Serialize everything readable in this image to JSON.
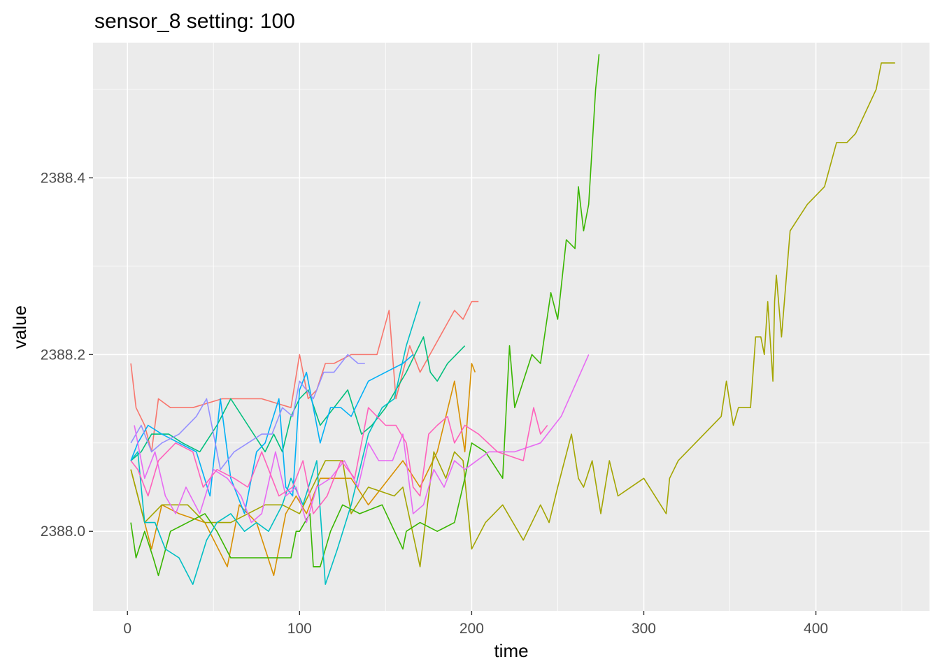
{
  "chart_data": {
    "type": "line",
    "title": "sensor_8 setting: 100",
    "xlabel": "time",
    "ylabel": "value",
    "xlim": [
      -20,
      466
    ],
    "ylim": [
      2387.91,
      2388.553
    ],
    "x_major_ticks": [
      0,
      100,
      200,
      300,
      400
    ],
    "x_tick_labels": [
      "0",
      "100",
      "200",
      "300",
      "400"
    ],
    "y_major_ticks": [
      2388.0,
      2388.2,
      2388.4
    ],
    "y_tick_labels": [
      "2388.0",
      "2388.2",
      "2388.4"
    ],
    "grid": true,
    "legend": "none",
    "series": [
      {
        "color": "#F8766D",
        "x": [
          2,
          5,
          10,
          14,
          18,
          25,
          38,
          55,
          78,
          95,
          100,
          105,
          110,
          115,
          120,
          130,
          145,
          152,
          156,
          164,
          170,
          190,
          195,
          200,
          204
        ],
        "y": [
          2388.19,
          2388.14,
          2388.12,
          2388.09,
          2388.15,
          2388.14,
          2388.14,
          2388.15,
          2388.15,
          2388.14,
          2388.2,
          2388.15,
          2388.16,
          2388.19,
          2388.19,
          2388.2,
          2388.2,
          2388.25,
          2388.15,
          2388.21,
          2388.18,
          2388.25,
          2388.24,
          2388.26,
          2388.26
        ]
      },
      {
        "color": "#D89000",
        "x": [
          2,
          6,
          10,
          14,
          20,
          30,
          45,
          58,
          65,
          75,
          85,
          92,
          98,
          104,
          112,
          120,
          130,
          140,
          160,
          170,
          180,
          190,
          196,
          200,
          202
        ],
        "y": [
          2388.07,
          2388.04,
          2388.01,
          2387.98,
          2388.03,
          2388.02,
          2388.01,
          2387.96,
          2388.03,
          2388.01,
          2387.95,
          2388.02,
          2388.04,
          2388.02,
          2388.06,
          2388.06,
          2388.06,
          2388.03,
          2388.08,
          2388.05,
          2388.09,
          2388.17,
          2388.09,
          2388.19,
          2388.18
        ]
      },
      {
        "color": "#A3A500",
        "x": [
          2,
          10,
          20,
          35,
          45,
          60,
          80,
          90,
          100,
          115,
          125,
          130,
          140,
          155,
          160,
          170,
          178,
          185,
          190,
          195,
          200,
          208,
          218,
          230,
          240,
          245,
          250,
          258,
          262,
          265,
          270,
          275,
          280,
          285,
          300,
          313,
          315,
          320,
          345,
          348,
          352,
          355,
          362,
          365,
          368,
          370,
          372,
          375,
          376,
          377,
          380,
          385,
          395,
          405,
          412,
          418,
          423,
          435,
          438,
          441,
          445,
          446
        ],
        "y": [
          2388.07,
          2388.01,
          2388.03,
          2388.03,
          2388.01,
          2388.01,
          2388.03,
          2388.03,
          2388.02,
          2388.08,
          2388.08,
          2388.02,
          2388.05,
          2388.04,
          2388.05,
          2387.96,
          2388.09,
          2388.06,
          2388.09,
          2388.08,
          2387.98,
          2388.01,
          2388.03,
          2387.99,
          2388.03,
          2388.01,
          2388.05,
          2388.11,
          2388.06,
          2388.05,
          2388.08,
          2388.02,
          2388.08,
          2388.04,
          2388.06,
          2388.02,
          2388.06,
          2388.08,
          2388.13,
          2388.17,
          2388.12,
          2388.14,
          2388.14,
          2388.22,
          2388.22,
          2388.2,
          2388.26,
          2388.17,
          2388.26,
          2388.29,
          2388.22,
          2388.34,
          2388.37,
          2388.39,
          2388.44,
          2388.44,
          2388.45,
          2388.5,
          2388.53,
          2388.53,
          2388.53,
          2388.53
        ]
      },
      {
        "color": "#39B600",
        "x": [
          2,
          5,
          10,
          15,
          18,
          25,
          35,
          45,
          52,
          60,
          72,
          85,
          95,
          98,
          100,
          106,
          108,
          112,
          118,
          125,
          135,
          148,
          160,
          162,
          170,
          180,
          190,
          196,
          200,
          208,
          218,
          222,
          225,
          230,
          235,
          240,
          246,
          250,
          255,
          260,
          262,
          265,
          268,
          272,
          274
        ],
        "y": [
          2388.01,
          2387.97,
          2388.0,
          2387.97,
          2387.95,
          2388.0,
          2388.01,
          2388.02,
          2388.0,
          2387.97,
          2387.97,
          2387.97,
          2387.97,
          2388.0,
          2388.0,
          2388.02,
          2387.96,
          2387.96,
          2388.0,
          2388.03,
          2388.02,
          2388.03,
          2387.98,
          2388.0,
          2388.01,
          2388.0,
          2388.01,
          2388.06,
          2388.1,
          2388.09,
          2388.06,
          2388.21,
          2388.14,
          2388.17,
          2388.2,
          2388.19,
          2388.27,
          2388.24,
          2388.33,
          2388.32,
          2388.39,
          2388.34,
          2388.37,
          2388.5,
          2388.54
        ]
      },
      {
        "color": "#00BF7D",
        "x": [
          2,
          8,
          14,
          24,
          32,
          42,
          52,
          60,
          70,
          80,
          85,
          90,
          95,
          100,
          105,
          112,
          120,
          128,
          136,
          142,
          150,
          156,
          162,
          172,
          176,
          180,
          186,
          196
        ],
        "y": [
          2388.08,
          2388.09,
          2388.11,
          2388.11,
          2388.1,
          2388.09,
          2388.12,
          2388.15,
          2388.12,
          2388.09,
          2388.11,
          2388.09,
          2388.13,
          2388.15,
          2388.16,
          2388.12,
          2388.14,
          2388.16,
          2388.11,
          2388.12,
          2388.14,
          2388.16,
          2388.18,
          2388.22,
          2388.18,
          2388.17,
          2388.19,
          2388.21
        ]
      },
      {
        "color": "#00BFC4",
        "x": [
          2,
          6,
          10,
          16,
          22,
          30,
          38,
          46,
          52,
          60,
          68,
          75,
          82,
          90,
          95,
          102,
          110,
          115,
          122,
          130,
          140,
          148,
          155,
          162,
          170
        ],
        "y": [
          2388.08,
          2388.09,
          2388.01,
          2388.01,
          2387.98,
          2387.97,
          2387.94,
          2387.99,
          2388.01,
          2388.02,
          2388.0,
          2388.01,
          2388.0,
          2388.03,
          2388.06,
          2388.03,
          2388.08,
          2387.94,
          2387.98,
          2388.03,
          2388.11,
          2388.14,
          2388.15,
          2388.21,
          2388.26
        ]
      },
      {
        "color": "#00B0F6",
        "x": [
          2,
          6,
          12,
          20,
          30,
          40,
          48,
          54,
          60,
          68,
          75,
          80,
          88,
          92,
          96,
          100,
          104,
          108,
          112,
          118,
          124,
          130,
          140,
          150,
          160,
          166
        ],
        "y": [
          2388.08,
          2388.1,
          2388.12,
          2388.11,
          2388.1,
          2388.09,
          2388.04,
          2388.15,
          2388.06,
          2388.02,
          2388.09,
          2388.1,
          2388.15,
          2388.05,
          2388.04,
          2388.16,
          2388.18,
          2388.14,
          2388.1,
          2388.14,
          2388.14,
          2388.13,
          2388.17,
          2388.18,
          2388.19,
          2388.2
        ]
      },
      {
        "color": "#9590FF",
        "x": [
          2,
          8,
          14,
          20,
          30,
          40,
          46,
          54,
          62,
          70,
          78,
          84,
          90,
          96,
          100,
          108,
          114,
          120,
          128,
          134,
          138
        ],
        "y": [
          2388.1,
          2388.12,
          2388.09,
          2388.1,
          2388.11,
          2388.13,
          2388.15,
          2388.07,
          2388.09,
          2388.1,
          2388.11,
          2388.11,
          2388.14,
          2388.13,
          2388.17,
          2388.15,
          2388.18,
          2388.18,
          2388.2,
          2388.19,
          2388.19
        ]
      },
      {
        "color": "#E76BF3",
        "x": [
          4,
          10,
          16,
          22,
          28,
          34,
          42,
          50,
          58,
          66,
          72,
          78,
          86,
          92,
          98,
          104,
          110,
          118,
          126,
          134,
          140,
          146,
          154,
          160,
          166,
          172,
          178,
          184,
          190,
          196,
          210,
          225,
          240,
          252,
          268
        ],
        "y": [
          2388.12,
          2388.06,
          2388.09,
          2388.04,
          2388.02,
          2388.05,
          2388.02,
          2388.07,
          2388.06,
          2388.04,
          2388.01,
          2388.02,
          2388.09,
          2388.04,
          2388.05,
          2388.01,
          2388.05,
          2388.06,
          2388.08,
          2388.05,
          2388.1,
          2388.08,
          2388.08,
          2388.11,
          2388.02,
          2388.03,
          2388.07,
          2388.05,
          2388.08,
          2388.07,
          2388.09,
          2388.09,
          2388.1,
          2388.13,
          2388.2
        ]
      },
      {
        "color": "#FF62BC",
        "x": [
          2,
          6,
          12,
          18,
          28,
          38,
          44,
          52,
          62,
          70,
          78,
          88,
          96,
          102,
          108,
          116,
          124,
          132,
          140,
          145,
          150,
          156,
          162,
          166,
          170,
          175,
          180,
          186,
          190,
          196,
          204,
          215,
          230,
          236,
          240,
          244
        ],
        "y": [
          2388.08,
          2388.07,
          2388.04,
          2388.08,
          2388.1,
          2388.09,
          2388.05,
          2388.07,
          2388.06,
          2388.05,
          2388.09,
          2388.04,
          2388.05,
          2388.08,
          2388.02,
          2388.04,
          2388.08,
          2388.06,
          2388.14,
          2388.13,
          2388.12,
          2388.12,
          2388.1,
          2388.05,
          2388.04,
          2388.11,
          2388.12,
          2388.13,
          2388.1,
          2388.12,
          2388.11,
          2388.09,
          2388.08,
          2388.14,
          2388.11,
          2388.12
        ]
      }
    ]
  }
}
